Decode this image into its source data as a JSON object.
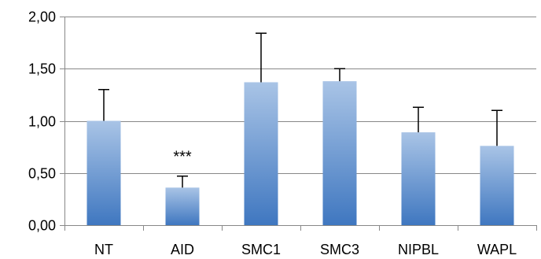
{
  "chart_data": {
    "type": "bar",
    "title": "",
    "xlabel": "",
    "ylabel": "",
    "categories": [
      "NT",
      "AID",
      "SMC1",
      "SMC3",
      "NIPBL",
      "WAPL"
    ],
    "values": [
      1.0,
      0.36,
      1.37,
      1.38,
      0.89,
      0.76
    ],
    "error_upper": [
      0.3,
      0.11,
      0.47,
      0.12,
      0.24,
      0.34
    ],
    "ylim": [
      0,
      2
    ],
    "yticks": [
      0,
      0.5,
      1,
      1.5,
      2
    ],
    "ytick_labels": [
      "0,00",
      "0,50",
      "1,00",
      "1,50",
      "2,00"
    ],
    "grid": true,
    "legend": "none",
    "annotations": [
      {
        "category": "AID",
        "text": "***"
      }
    ],
    "colors": {
      "bar_top": "#a9c4e6",
      "bar_bottom": "#3f77c0",
      "grid": "#888888",
      "axis": "#888888",
      "error_bar": "#000000"
    }
  }
}
